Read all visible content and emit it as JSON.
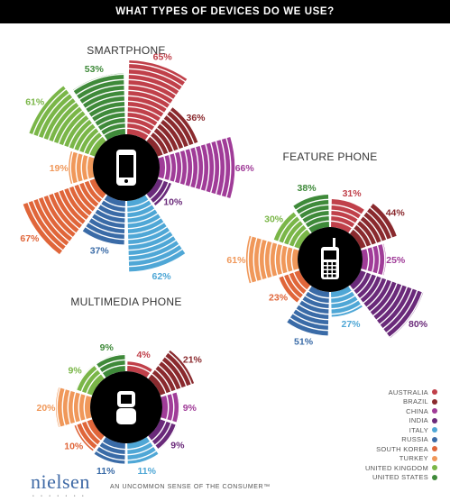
{
  "title": "WHAT TYPES OF DEVICES DO WE USE?",
  "brand": {
    "logo_text": "nielsen",
    "logo_dots": "• • • • • • •",
    "tagline": "AN UNCOMMON SENSE OF THE CONSUMER™"
  },
  "colors": {
    "Australia": "#c0404a",
    "Brazil": "#8a2a2e",
    "China": "#a03c98",
    "India": "#6a2a7a",
    "Italy": "#4fa7d6",
    "Russia": "#3a6ba7",
    "South Korea": "#e0663a",
    "Turkey": "#f0985a",
    "United Kingdom": "#7ab648",
    "United States": "#3f8a3a"
  },
  "chart_data": {
    "type": "radial-bar",
    "legend": [
      "AUSTRALIA",
      "BRAZIL",
      "CHINA",
      "INDIA",
      "ITALY",
      "RUSSIA",
      "SOUTH KOREA",
      "TURKEY",
      "UNITED KINGDOM",
      "UNITED STATES"
    ],
    "legend_placement": "bottom-right",
    "charts": [
      {
        "name": "SMARTPHONE",
        "icon": "smartphone-icon",
        "values": [
          65,
          36,
          66,
          10,
          62,
          37,
          67,
          19,
          61,
          53
        ],
        "labels": [
          "65%",
          "36%",
          "66%",
          "10%",
          "62%",
          "37%",
          "67%",
          "19%",
          "61%",
          "53%"
        ]
      },
      {
        "name": "FEATURE PHONE",
        "icon": "feature-phone-icon",
        "values": [
          31,
          44,
          25,
          80,
          27,
          51,
          23,
          61,
          30,
          38
        ],
        "labels": [
          "31%",
          "44%",
          "25%",
          "80%",
          "27%",
          "51%",
          "23%",
          "61%",
          "30%",
          "38%"
        ]
      },
      {
        "name": "MULTIMEDIA PHONE",
        "icon": "flip-phone-icon",
        "values": [
          4,
          21,
          9,
          9,
          11,
          11,
          10,
          20,
          9,
          9
        ],
        "labels": [
          "4%",
          "21%",
          "9%",
          "9%",
          "11%",
          "11%",
          "10%",
          "20%",
          "9%",
          "9%"
        ]
      }
    ]
  }
}
